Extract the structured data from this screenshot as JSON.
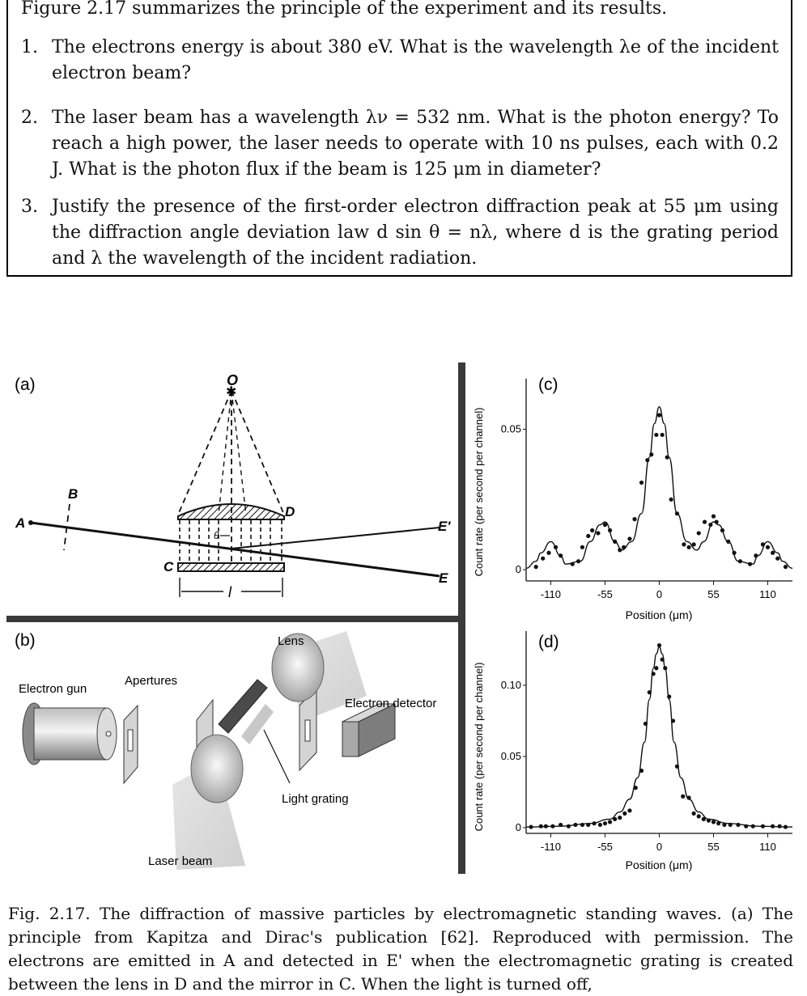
{
  "intro": "Figure 2.17 summarizes the principle of the experiment and its results.",
  "questions": [
    {
      "num": "1.",
      "text": "The electrons energy is about 380 eV. What is the wavelength λe of the incident electron beam?"
    },
    {
      "num": "2.",
      "text": "The laser beam has a wavelength λν = 532 nm. What is the photon energy? To reach a high power, the laser needs to operate with 10 ns pulses, each with 0.2 J. What is the photon flux if the beam is 125 μm in diameter?"
    },
    {
      "num": "3.",
      "text": "Justify the presence of the first-order electron diffraction peak at 55 μm using the diffraction angle deviation law d sin θ = nλ, where d is the grating period and λ the wavelength of the incident radiation."
    }
  ],
  "panel_a": {
    "label": "(a)",
    "points": {
      "O": "O",
      "A": "A",
      "B": "B",
      "C": "C",
      "D": "D",
      "E": "E",
      "E_prime": "E'",
      "theta": "θ",
      "l": "l"
    }
  },
  "panel_b": {
    "label": "(b)",
    "lens": "Lens",
    "electron_gun": "Electron gun",
    "apertures": "Apertures",
    "electron_detector": "Electron detector",
    "light_grating": "Light grating",
    "laser_beam": "Laser beam"
  },
  "panel_c": {
    "label": "(c)"
  },
  "panel_d": {
    "label": "(d)"
  },
  "caption": "Fig. 2.17.   The diffraction of massive particles by electromagnetic standing waves. (a) The principle from Kapitza and Dirac's publication [62]. Reproduced with permission. The electrons are emitted in A and detected in E' when the electromagnetic grating is created between the lens in D and the mirror in C. When the light is turned off,",
  "chart_data": [
    {
      "type": "line",
      "panel": "(c)",
      "title": "",
      "xlabel": "Position (μm)",
      "ylabel": "Count rate (per second per channel)",
      "xticks": [
        "-110",
        "-55",
        "0",
        "55",
        "110"
      ],
      "yticks": [
        "0",
        "0.05"
      ],
      "xlim": [
        -135,
        135
      ],
      "ylim": [
        -0.004,
        0.068
      ],
      "grid": false,
      "series": [
        {
          "kind": "fit",
          "x": [
            -135,
            -125,
            -120,
            -110,
            -100,
            -95,
            -80,
            -70,
            -60,
            -55,
            -45,
            -38,
            -28,
            -18,
            -10,
            -5,
            0,
            5,
            10,
            18,
            28,
            38,
            45,
            55,
            60,
            70,
            80,
            95,
            100,
            110,
            120,
            125,
            135
          ],
          "y": [
            0.0005,
            0.003,
            0.006,
            0.01,
            0.005,
            0.002,
            0.003,
            0.01,
            0.016,
            0.017,
            0.01,
            0.007,
            0.01,
            0.02,
            0.04,
            0.052,
            0.058,
            0.052,
            0.04,
            0.02,
            0.01,
            0.007,
            0.01,
            0.017,
            0.016,
            0.01,
            0.003,
            0.002,
            0.005,
            0.01,
            0.006,
            0.003,
            0.0005
          ]
        },
        {
          "kind": "data",
          "x": [
            -125,
            -118,
            -112,
            -105,
            -100,
            -88,
            -82,
            -78,
            -72,
            -68,
            -62,
            -55,
            -50,
            -45,
            -40,
            -36,
            -30,
            -25,
            -18,
            -12,
            -8,
            -3,
            0,
            3,
            8,
            12,
            18,
            25,
            30,
            35,
            40,
            46,
            52,
            55,
            58,
            64,
            70,
            76,
            82,
            92,
            98,
            105,
            110,
            115,
            120,
            128
          ],
          "y": [
            0.001,
            0.004,
            0.006,
            0.008,
            0.005,
            0.002,
            0.003,
            0.008,
            0.012,
            0.014,
            0.013,
            0.016,
            0.014,
            0.01,
            0.007,
            0.008,
            0.011,
            0.018,
            0.031,
            0.039,
            0.041,
            0.048,
            0.055,
            0.048,
            0.04,
            0.025,
            0.02,
            0.009,
            0.008,
            0.009,
            0.013,
            0.017,
            0.016,
            0.019,
            0.017,
            0.014,
            0.01,
            0.006,
            0.003,
            0.002,
            0.005,
            0.009,
            0.008,
            0.006,
            0.004,
            0.001
          ]
        }
      ]
    },
    {
      "type": "line",
      "panel": "(d)",
      "title": "",
      "xlabel": "Position (μm)",
      "ylabel": "Count rate (per second per channel)",
      "xticks": [
        "-110",
        "-55",
        "0",
        "55",
        "110"
      ],
      "yticks": [
        "0",
        "0.05",
        "0.10"
      ],
      "xlim": [
        -135,
        135
      ],
      "ylim": [
        -0.004,
        0.138
      ],
      "grid": false,
      "series": [
        {
          "kind": "fit",
          "x": [
            -135,
            -100,
            -70,
            -50,
            -40,
            -30,
            -22,
            -15,
            -10,
            -6,
            -3,
            0,
            3,
            6,
            10,
            15,
            22,
            30,
            40,
            50,
            70,
            100,
            135
          ],
          "y": [
            0.0005,
            0.001,
            0.003,
            0.006,
            0.011,
            0.02,
            0.035,
            0.06,
            0.09,
            0.112,
            0.122,
            0.127,
            0.122,
            0.112,
            0.09,
            0.06,
            0.035,
            0.02,
            0.011,
            0.006,
            0.003,
            0.001,
            0.0005
          ]
        },
        {
          "kind": "data",
          "x": [
            -130,
            -120,
            -115,
            -108,
            -100,
            -92,
            -85,
            -78,
            -72,
            -66,
            -60,
            -55,
            -50,
            -45,
            -40,
            -35,
            -30,
            -24,
            -18,
            -14,
            -10,
            -6,
            -3,
            0,
            3,
            6,
            10,
            14,
            18,
            24,
            30,
            35,
            40,
            45,
            50,
            55,
            60,
            66,
            72,
            80,
            88,
            95,
            105,
            115,
            122,
            128
          ],
          "y": [
            0.0005,
            0.001,
            0.001,
            0.001,
            0.002,
            0.001,
            0.002,
            0.002,
            0.002,
            0.003,
            0.002,
            0.003,
            0.004,
            0.006,
            0.007,
            0.01,
            0.012,
            0.028,
            0.04,
            0.073,
            0.095,
            0.108,
            0.112,
            0.128,
            0.118,
            0.112,
            0.092,
            0.075,
            0.043,
            0.022,
            0.021,
            0.01,
            0.008,
            0.006,
            0.005,
            0.004,
            0.003,
            0.002,
            0.002,
            0.002,
            0.001,
            0.001,
            0.001,
            0.001,
            0.001,
            0.0005
          ]
        }
      ]
    }
  ]
}
